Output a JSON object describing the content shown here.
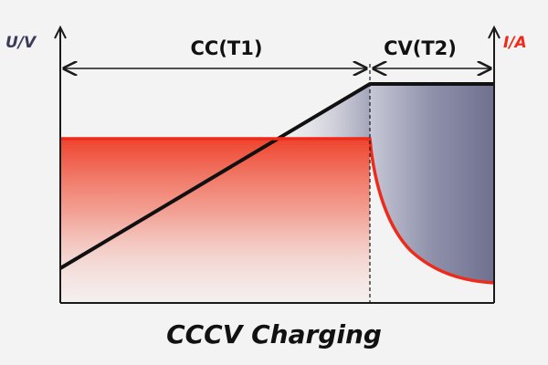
{
  "title": "CCCV Charging",
  "y_left_label": "U/V",
  "y_right_label": "I/A",
  "phases": [
    {
      "name": "CC(T1)"
    },
    {
      "name": "CV(T2)"
    }
  ],
  "colors": {
    "voltage": "#111111",
    "current": "#ee2a1b",
    "voltage_fill": "#6f708f",
    "current_fill": "#f04a33",
    "background": "#f3f3f3",
    "axis": "#1a1a1a"
  }
}
